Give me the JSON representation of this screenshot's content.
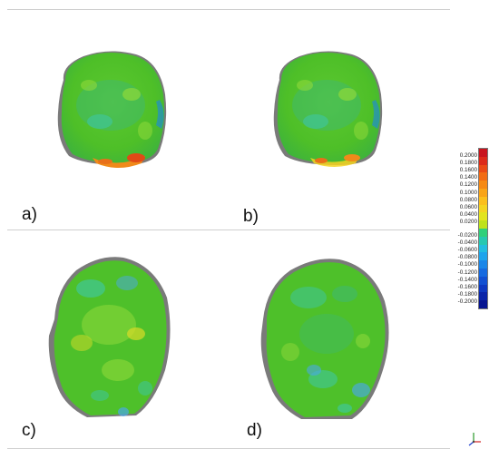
{
  "panels": [
    {
      "label": "a)",
      "view": "top"
    },
    {
      "label": "b)",
      "view": "top"
    },
    {
      "label": "c)",
      "view": "front"
    },
    {
      "label": "d)",
      "view": "front"
    }
  ],
  "legend": {
    "ticks": [
      "0.2000",
      "0.1800",
      "0.1600",
      "0.1400",
      "0.1200",
      "0.1000",
      "0.0800",
      "0.0600",
      "0.0400",
      "0.0200",
      "-0.0200",
      "-0.0400",
      "-0.0600",
      "-0.0800",
      "-0.1000",
      "-0.1200",
      "-0.1400",
      "-0.1600",
      "-0.1800",
      "-0.2000"
    ],
    "colors": [
      "#c8141e",
      "#dc2a1a",
      "#ea4a16",
      "#f26c14",
      "#f68a14",
      "#f9a418",
      "#fbbf1c",
      "#f4d420",
      "#e2e41e",
      "#bfe21c",
      "#2fd07a",
      "#26c8b0",
      "#22bde0",
      "#1ea4ec",
      "#1a86e8",
      "#166ae0",
      "#1250d2",
      "#0e38c0",
      "#0a24a8",
      "#061490"
    ]
  },
  "mesh_colors": {
    "base": "#4ec02a",
    "light": "#8fd83a",
    "cyan": "#3cc8b4",
    "blue": "#4aa8e8",
    "yellow": "#d8dc28",
    "orange": "#f08a1a",
    "red": "#e04a16",
    "shadow": "#8a8a8a"
  }
}
